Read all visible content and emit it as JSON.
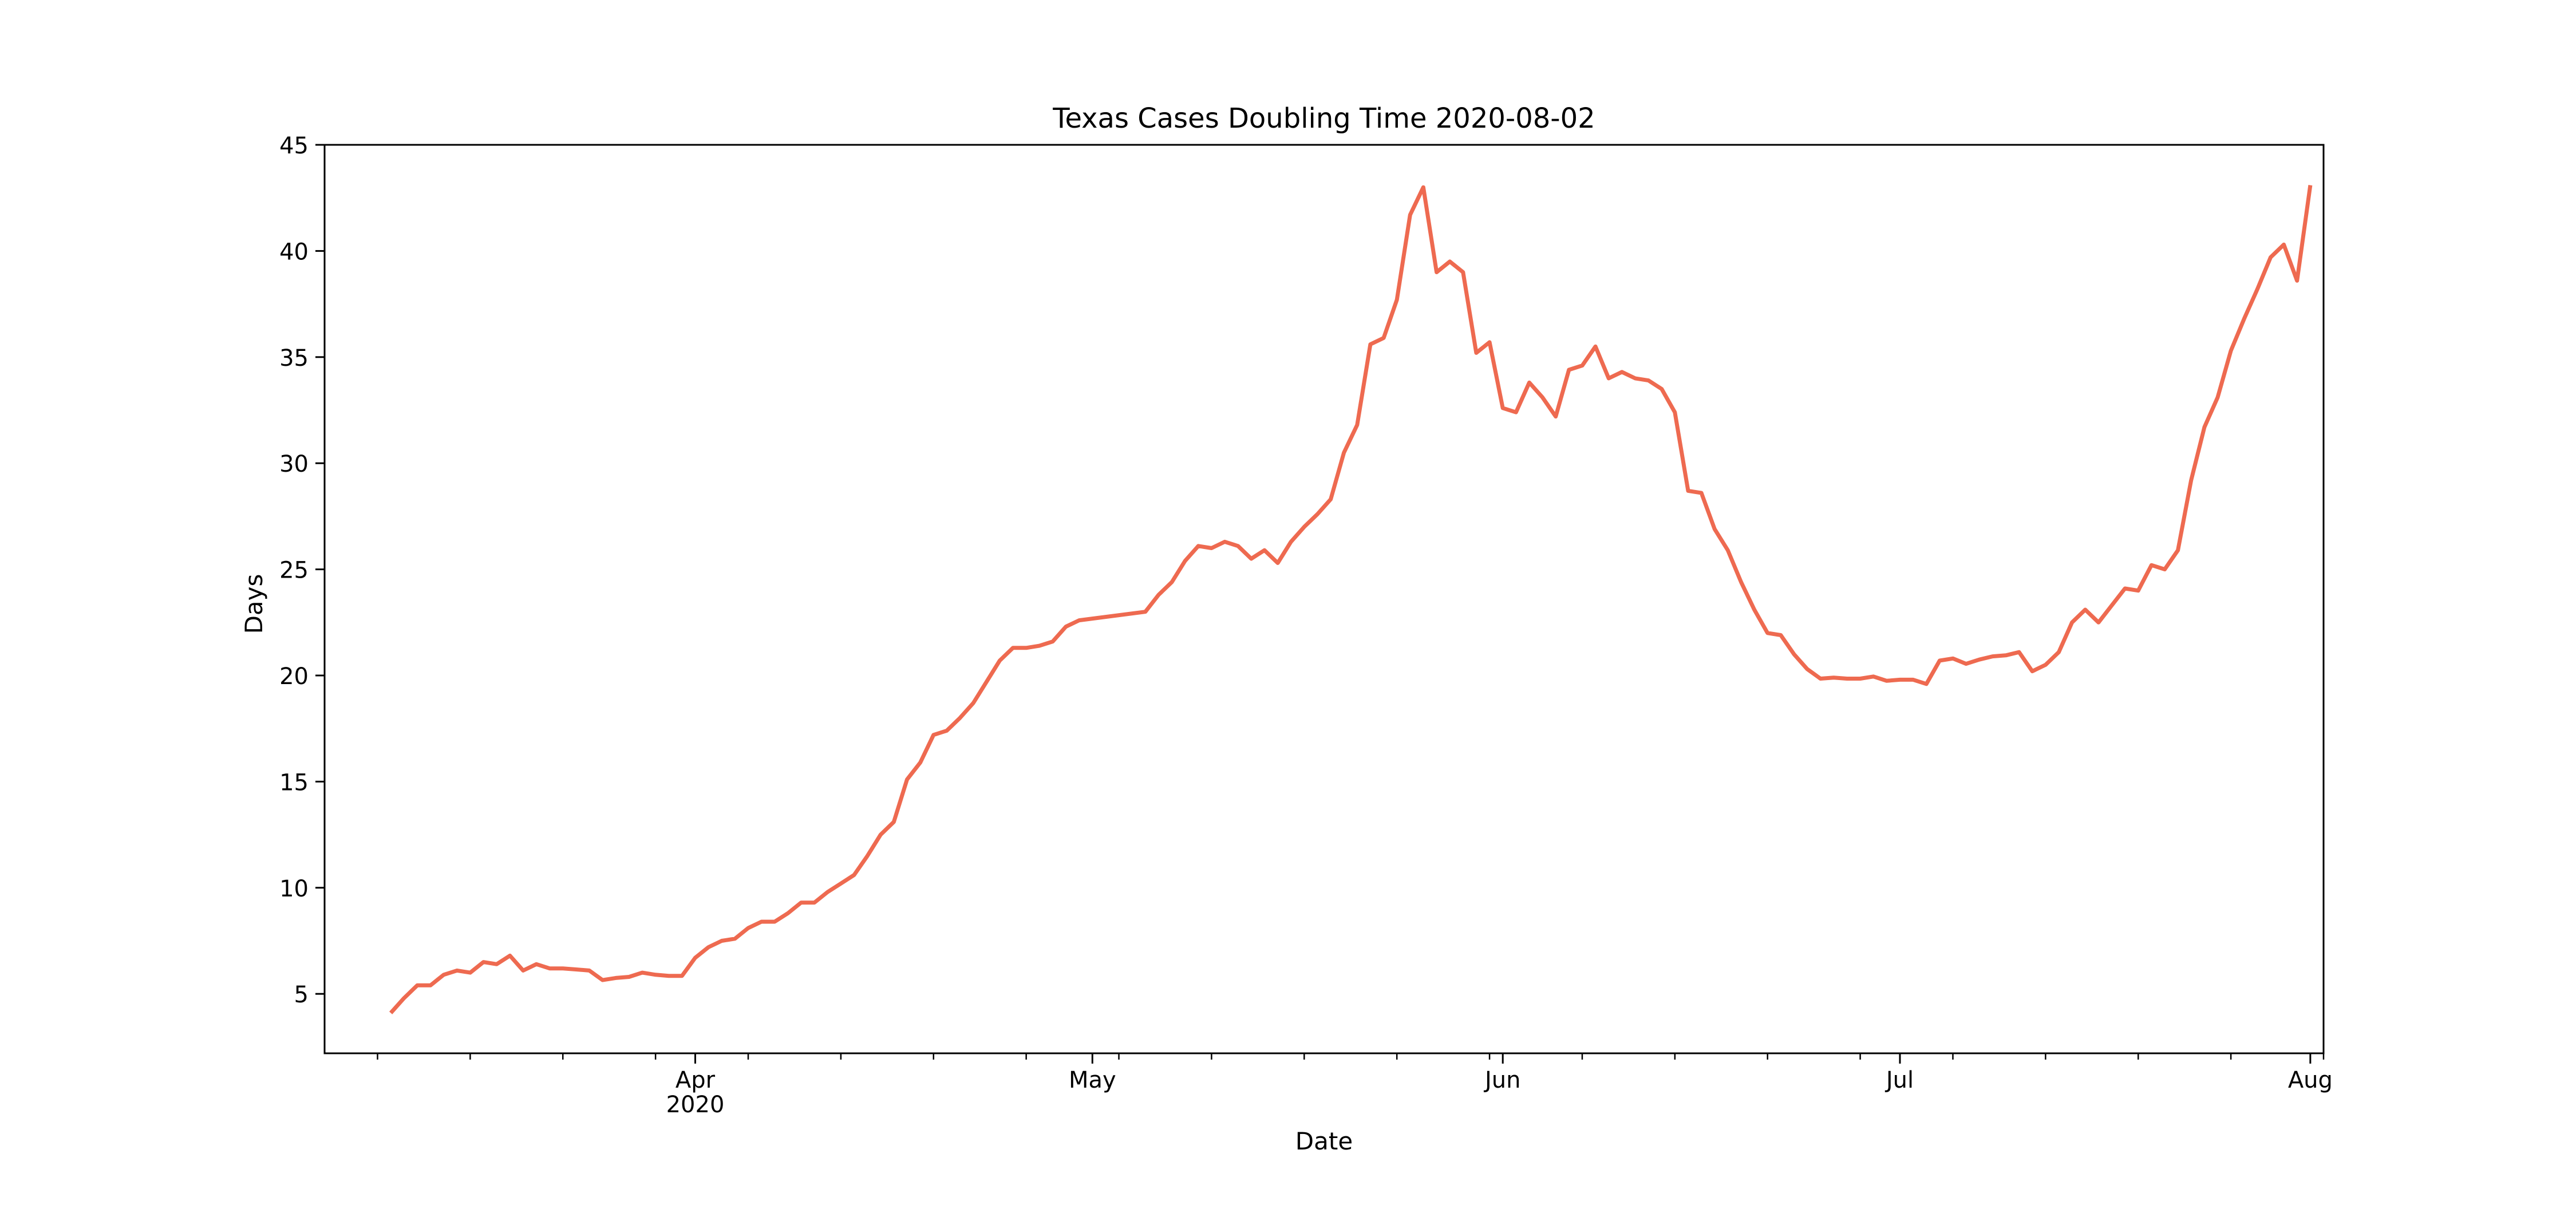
{
  "chart_data": {
    "type": "line",
    "title": "Texas Cases Doubling Time 2020-08-02",
    "xlabel": "Date",
    "ylabel": "Days",
    "ylim": [
      2.2,
      45
    ],
    "xlim": [
      "2020-03-04",
      "2020-08-02"
    ],
    "yticks": [
      5,
      10,
      15,
      20,
      25,
      30,
      35,
      40,
      45
    ],
    "xticks_major": [
      {
        "date": "2020-04-01",
        "label": "Apr",
        "sublabel": "2020"
      },
      {
        "date": "2020-05-01",
        "label": "May",
        "sublabel": ""
      },
      {
        "date": "2020-06-01",
        "label": "Jun",
        "sublabel": ""
      },
      {
        "date": "2020-07-01",
        "label": "Jul",
        "sublabel": ""
      },
      {
        "date": "2020-08-01",
        "label": "Aug",
        "sublabel": ""
      }
    ],
    "xticks_minor": [
      "2020-03-08",
      "2020-03-15",
      "2020-03-22",
      "2020-03-29",
      "2020-04-05",
      "2020-04-12",
      "2020-04-19",
      "2020-04-26",
      "2020-05-03",
      "2020-05-10",
      "2020-05-17",
      "2020-05-24",
      "2020-05-31",
      "2020-06-07",
      "2020-06-14",
      "2020-06-21",
      "2020-06-28",
      "2020-07-05",
      "2020-07-12",
      "2020-07-19",
      "2020-07-26",
      "2020-08-02"
    ],
    "grid": false,
    "color": "#ee6a50",
    "series": [
      {
        "name": "",
        "points": [
          [
            "2020-03-09",
            4.1
          ],
          [
            "2020-03-10",
            4.8
          ],
          [
            "2020-03-11",
            5.4
          ],
          [
            "2020-03-12",
            5.4
          ],
          [
            "2020-03-13",
            5.9
          ],
          [
            "2020-03-14",
            6.1
          ],
          [
            "2020-03-15",
            6.0
          ],
          [
            "2020-03-16",
            6.5
          ],
          [
            "2020-03-17",
            6.4
          ],
          [
            "2020-03-18",
            6.8
          ],
          [
            "2020-03-19",
            6.1
          ],
          [
            "2020-03-20",
            6.4
          ],
          [
            "2020-03-21",
            6.2
          ],
          [
            "2020-03-22",
            6.2
          ],
          [
            "2020-03-23",
            6.15
          ],
          [
            "2020-03-24",
            6.1
          ],
          [
            "2020-03-25",
            5.65
          ],
          [
            "2020-03-26",
            5.75
          ],
          [
            "2020-03-27",
            5.8
          ],
          [
            "2020-03-28",
            6.0
          ],
          [
            "2020-03-29",
            5.9
          ],
          [
            "2020-03-30",
            5.85
          ],
          [
            "2020-03-31",
            5.85
          ],
          [
            "2020-04-01",
            6.7
          ],
          [
            "2020-04-02",
            7.2
          ],
          [
            "2020-04-03",
            7.5
          ],
          [
            "2020-04-04",
            7.6
          ],
          [
            "2020-04-05",
            8.1
          ],
          [
            "2020-04-06",
            8.4
          ],
          [
            "2020-04-07",
            8.4
          ],
          [
            "2020-04-08",
            8.8
          ],
          [
            "2020-04-09",
            9.3
          ],
          [
            "2020-04-10",
            9.3
          ],
          [
            "2020-04-11",
            9.8
          ],
          [
            "2020-04-12",
            10.2
          ],
          [
            "2020-04-13",
            10.6
          ],
          [
            "2020-04-14",
            11.5
          ],
          [
            "2020-04-15",
            12.5
          ],
          [
            "2020-04-16",
            13.1
          ],
          [
            "2020-04-17",
            15.1
          ],
          [
            "2020-04-18",
            15.9
          ],
          [
            "2020-04-19",
            17.2
          ],
          [
            "2020-04-20",
            17.4
          ],
          [
            "2020-04-21",
            18.0
          ],
          [
            "2020-04-22",
            18.7
          ],
          [
            "2020-04-23",
            19.7
          ],
          [
            "2020-04-24",
            20.7
          ],
          [
            "2020-04-25",
            21.3
          ],
          [
            "2020-04-26",
            21.3
          ],
          [
            "2020-04-27",
            21.4
          ],
          [
            "2020-04-28",
            21.6
          ],
          [
            "2020-04-29",
            22.3
          ],
          [
            "2020-04-30",
            22.6
          ],
          [
            "2020-05-05",
            23.0
          ],
          [
            "2020-05-06",
            23.8
          ],
          [
            "2020-05-07",
            24.4
          ],
          [
            "2020-05-08",
            25.4
          ],
          [
            "2020-05-09",
            26.1
          ],
          [
            "2020-05-10",
            26.0
          ],
          [
            "2020-05-11",
            26.3
          ],
          [
            "2020-05-12",
            26.1
          ],
          [
            "2020-05-13",
            25.5
          ],
          [
            "2020-05-14",
            25.9
          ],
          [
            "2020-05-15",
            25.3
          ],
          [
            "2020-05-16",
            26.3
          ],
          [
            "2020-05-17",
            27.0
          ],
          [
            "2020-05-18",
            27.6
          ],
          [
            "2020-05-19",
            28.3
          ],
          [
            "2020-05-20",
            30.5
          ],
          [
            "2020-05-21",
            31.8
          ],
          [
            "2020-05-22",
            35.6
          ],
          [
            "2020-05-23",
            35.9
          ],
          [
            "2020-05-24",
            37.7
          ],
          [
            "2020-05-25",
            41.7
          ],
          [
            "2020-05-26",
            43.0
          ],
          [
            "2020-05-27",
            39.0
          ],
          [
            "2020-05-28",
            39.5
          ],
          [
            "2020-05-29",
            39.0
          ],
          [
            "2020-05-30",
            35.2
          ],
          [
            "2020-05-31",
            35.7
          ],
          [
            "2020-06-01",
            32.6
          ],
          [
            "2020-06-02",
            32.4
          ],
          [
            "2020-06-03",
            33.8
          ],
          [
            "2020-06-04",
            33.1
          ],
          [
            "2020-06-05",
            32.2
          ],
          [
            "2020-06-06",
            34.4
          ],
          [
            "2020-06-07",
            34.6
          ],
          [
            "2020-06-08",
            35.5
          ],
          [
            "2020-06-09",
            34.0
          ],
          [
            "2020-06-10",
            34.3
          ],
          [
            "2020-06-11",
            34.0
          ],
          [
            "2020-06-12",
            33.9
          ],
          [
            "2020-06-13",
            33.5
          ],
          [
            "2020-06-14",
            32.4
          ],
          [
            "2020-06-15",
            28.7
          ],
          [
            "2020-06-16",
            28.6
          ],
          [
            "2020-06-17",
            26.9
          ],
          [
            "2020-06-18",
            25.9
          ],
          [
            "2020-06-19",
            24.4
          ],
          [
            "2020-06-20",
            23.1
          ],
          [
            "2020-06-21",
            22.0
          ],
          [
            "2020-06-22",
            21.9
          ],
          [
            "2020-06-23",
            21.0
          ],
          [
            "2020-06-24",
            20.3
          ],
          [
            "2020-06-25",
            19.85
          ],
          [
            "2020-06-26",
            19.9
          ],
          [
            "2020-06-27",
            19.85
          ],
          [
            "2020-06-28",
            19.85
          ],
          [
            "2020-06-29",
            19.95
          ],
          [
            "2020-06-30",
            19.75
          ],
          [
            "2020-07-01",
            19.8
          ],
          [
            "2020-07-02",
            19.8
          ],
          [
            "2020-07-03",
            19.6
          ],
          [
            "2020-07-04",
            20.7
          ],
          [
            "2020-07-05",
            20.8
          ],
          [
            "2020-07-06",
            20.55
          ],
          [
            "2020-07-07",
            20.75
          ],
          [
            "2020-07-08",
            20.9
          ],
          [
            "2020-07-09",
            20.95
          ],
          [
            "2020-07-10",
            21.1
          ],
          [
            "2020-07-11",
            20.2
          ],
          [
            "2020-07-12",
            20.5
          ],
          [
            "2020-07-13",
            21.1
          ],
          [
            "2020-07-14",
            22.5
          ],
          [
            "2020-07-15",
            23.1
          ],
          [
            "2020-07-16",
            22.5
          ],
          [
            "2020-07-17",
            23.3
          ],
          [
            "2020-07-18",
            24.1
          ],
          [
            "2020-07-19",
            24.0
          ],
          [
            "2020-07-20",
            25.2
          ],
          [
            "2020-07-21",
            25.0
          ],
          [
            "2020-07-22",
            25.9
          ],
          [
            "2020-07-23",
            29.2
          ],
          [
            "2020-07-24",
            31.7
          ],
          [
            "2020-07-25",
            33.1
          ],
          [
            "2020-07-26",
            35.3
          ],
          [
            "2020-07-27",
            36.8
          ],
          [
            "2020-07-28",
            38.2
          ],
          [
            "2020-07-29",
            39.7
          ],
          [
            "2020-07-30",
            40.3
          ],
          [
            "2020-07-31",
            38.6
          ],
          [
            "2020-08-01",
            43.1
          ]
        ]
      }
    ]
  }
}
